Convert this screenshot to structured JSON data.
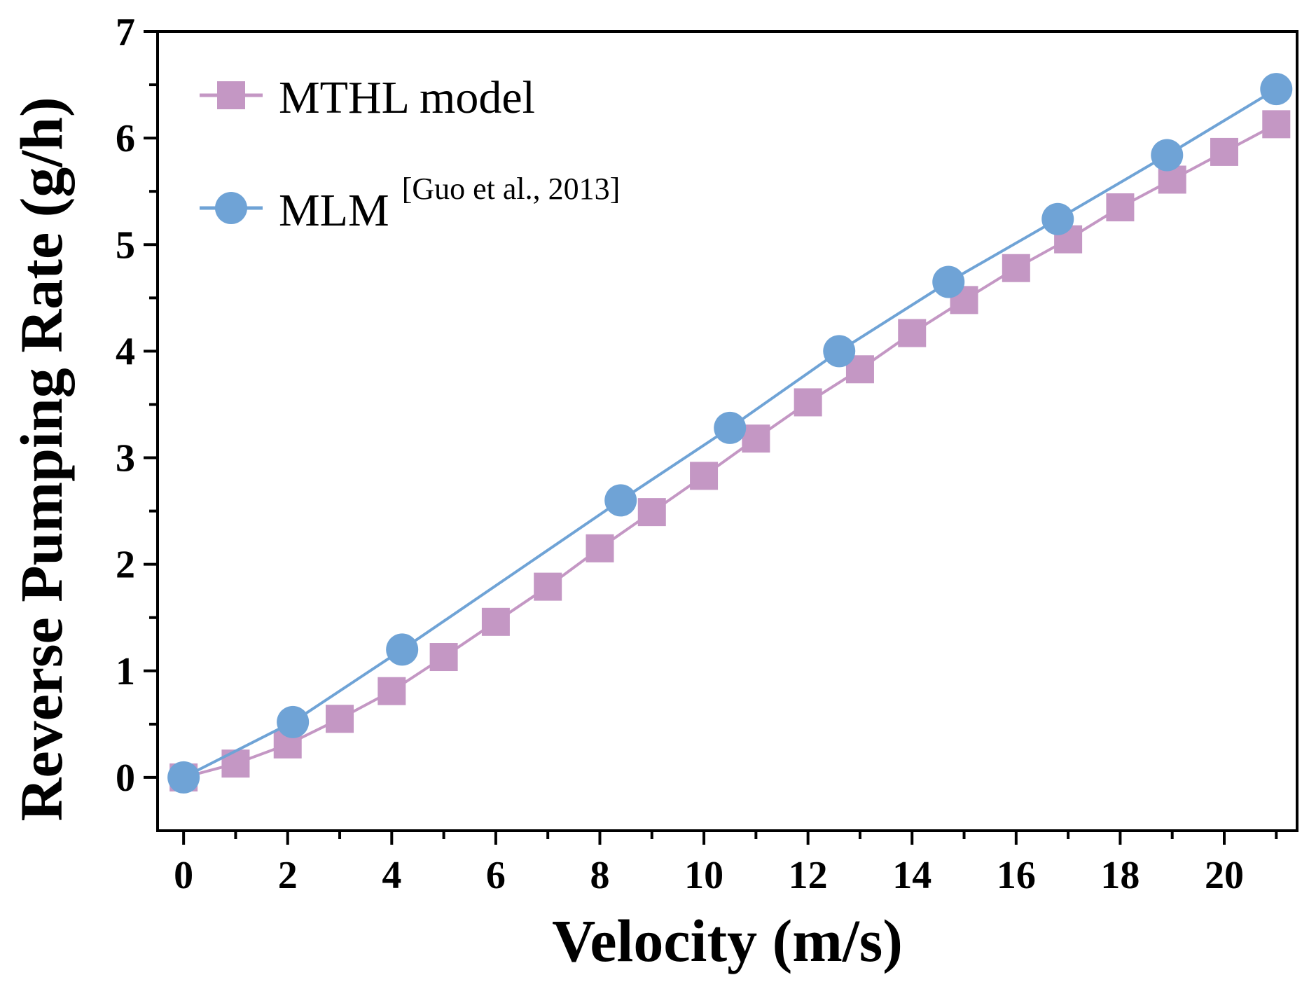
{
  "chart_data": {
    "type": "line",
    "title": "",
    "xlabel": "Velocity (m/s)",
    "ylabel": "Reverse Pumping Rate (g/h)",
    "xlim": [
      -0.5,
      21.4
    ],
    "ylim": [
      -0.5,
      7
    ],
    "xticks": [
      0,
      2,
      4,
      6,
      8,
      10,
      12,
      14,
      16,
      18,
      20
    ],
    "xtick_labels": [
      "0",
      "2",
      "4",
      "6",
      "8",
      "10",
      "12",
      "14",
      "16",
      "18",
      "20"
    ],
    "xminor": [
      1,
      3,
      5,
      7,
      9,
      11,
      13,
      15,
      17,
      19,
      21
    ],
    "yticks": [
      0,
      1,
      2,
      3,
      4,
      5,
      6,
      7
    ],
    "ytick_labels": [
      "0",
      "1",
      "2",
      "3",
      "4",
      "5",
      "6",
      "7"
    ],
    "yminor": [
      0.5,
      1.5,
      2.5,
      3.5,
      4.5,
      5.5,
      6.5
    ],
    "grid": false,
    "legend_position": "top-left",
    "series": [
      {
        "name": "MTHL model",
        "color": "#c497c4",
        "marker": "square",
        "x": [
          0,
          1,
          2,
          3,
          4,
          5,
          6,
          7,
          8,
          9,
          10,
          11,
          12,
          13,
          14,
          15,
          16,
          17,
          18,
          19,
          20,
          21
        ],
        "y": [
          0,
          0.13,
          0.31,
          0.55,
          0.81,
          1.13,
          1.46,
          1.79,
          2.15,
          2.49,
          2.83,
          3.18,
          3.52,
          3.83,
          4.17,
          4.48,
          4.78,
          5.05,
          5.35,
          5.61,
          5.87,
          6.13
        ]
      },
      {
        "name": "MLM",
        "name_superscript": "[Guo et al., 2013]",
        "color": "#6fa3d6",
        "marker": "circle",
        "x": [
          0,
          2.1,
          4.2,
          8.4,
          10.5,
          12.6,
          14.7,
          16.8,
          18.9,
          21
        ],
        "y": [
          0,
          0.52,
          1.2,
          2.6,
          3.28,
          4.0,
          4.65,
          5.24,
          5.84,
          6.46
        ]
      }
    ]
  }
}
